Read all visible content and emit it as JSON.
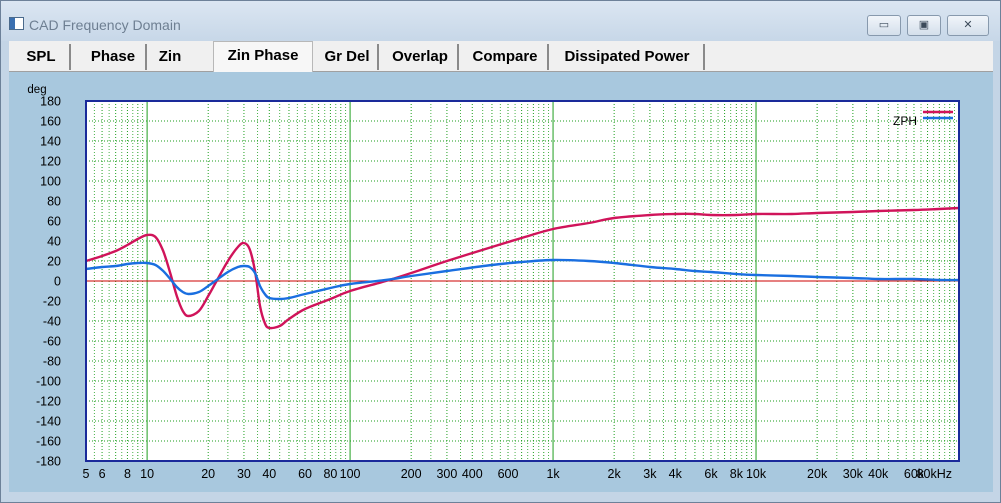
{
  "window": {
    "title": "CAD Frequency Domain",
    "controls": {
      "minimize": "▭",
      "maximize": "▣",
      "close": "✕"
    }
  },
  "tabs": [
    {
      "label": "SPL",
      "active": false
    },
    {
      "label": "Phase",
      "active": false
    },
    {
      "label": "Zin",
      "active": false
    },
    {
      "label": "Zin Phase",
      "active": true
    },
    {
      "label": "Gr Del",
      "active": false
    },
    {
      "label": "Overlap",
      "active": false
    },
    {
      "label": "Compare",
      "active": false
    },
    {
      "label": "Dissipated Power",
      "active": false
    }
  ],
  "colors": {
    "plot_bg": "#ffffff",
    "grid": "#1e9e1e",
    "zero_line": "#cc0000",
    "series_magenta": "#d0145a",
    "series_blue": "#1a6fe0",
    "frame": "#1a2a9a"
  },
  "chart_data": {
    "type": "line",
    "xscale": "log",
    "xlim": [
      5,
      100000
    ],
    "ylim": [
      -180,
      180
    ],
    "ylabel": "deg",
    "grid": true,
    "legend_placement": "top-right",
    "y_ticks": [
      {
        "v": 180,
        "label": "180"
      },
      {
        "v": 160,
        "label": "160"
      },
      {
        "v": 140,
        "label": "140"
      },
      {
        "v": 120,
        "label": "120"
      },
      {
        "v": 100,
        "label": "100"
      },
      {
        "v": 80,
        "label": "80"
      },
      {
        "v": 60,
        "label": "60"
      },
      {
        "v": 40,
        "label": "40"
      },
      {
        "v": 20,
        "label": "20"
      },
      {
        "v": 0,
        "label": "0"
      },
      {
        "v": -20,
        "label": "-20"
      },
      {
        "v": -40,
        "label": "-40"
      },
      {
        "v": -60,
        "label": "-60"
      },
      {
        "v": -80,
        "label": "-80"
      },
      {
        "v": -100,
        "label": "-100"
      },
      {
        "v": -120,
        "label": "-120"
      },
      {
        "v": -140,
        "label": "-140"
      },
      {
        "v": -160,
        "label": "-160"
      },
      {
        "v": -180,
        "label": "-180"
      }
    ],
    "x_ticks": [
      {
        "v": 5,
        "label": "5"
      },
      {
        "v": 6,
        "label": "6"
      },
      {
        "v": 8,
        "label": "8"
      },
      {
        "v": 10,
        "label": "10"
      },
      {
        "v": 20,
        "label": "20"
      },
      {
        "v": 30,
        "label": "30"
      },
      {
        "v": 40,
        "label": "40"
      },
      {
        "v": 60,
        "label": "60"
      },
      {
        "v": 80,
        "label": "80"
      },
      {
        "v": 100,
        "label": "100"
      },
      {
        "v": 200,
        "label": "200"
      },
      {
        "v": 300,
        "label": "300"
      },
      {
        "v": 400,
        "label": "400"
      },
      {
        "v": 600,
        "label": "600"
      },
      {
        "v": 1000,
        "label": "1k"
      },
      {
        "v": 2000,
        "label": "2k"
      },
      {
        "v": 3000,
        "label": "3k"
      },
      {
        "v": 4000,
        "label": "4k"
      },
      {
        "v": 6000,
        "label": "6k"
      },
      {
        "v": 8000,
        "label": "8k"
      },
      {
        "v": 10000,
        "label": "10k"
      },
      {
        "v": 20000,
        "label": "20k"
      },
      {
        "v": 30000,
        "label": "30k"
      },
      {
        "v": 40000,
        "label": "40k"
      },
      {
        "v": 60000,
        "label": "60k"
      },
      {
        "v": 80000,
        "label": "80kHz"
      }
    ],
    "legend": [
      {
        "label": "ZPH"
      }
    ],
    "series": [
      {
        "color": "#d0145a",
        "x": [
          5,
          6,
          7,
          8,
          9,
          10,
          11,
          12,
          13,
          14,
          15,
          16,
          18,
          20,
          22,
          25,
          28,
          30,
          32,
          34,
          36,
          38,
          40,
          45,
          50,
          60,
          80,
          100,
          150,
          200,
          300,
          500,
          700,
          1000,
          1500,
          2000,
          3000,
          4000,
          5000,
          6000,
          8000,
          10000,
          15000,
          20000,
          30000,
          40000,
          60000,
          80000,
          100000
        ],
        "y": [
          20,
          25,
          30,
          36,
          42,
          46,
          44,
          30,
          8,
          -15,
          -30,
          -35,
          -30,
          -15,
          0,
          20,
          34,
          38,
          32,
          10,
          -25,
          -42,
          -47,
          -45,
          -38,
          -28,
          -18,
          -10,
          0,
          8,
          20,
          34,
          43,
          52,
          58,
          63,
          66,
          67,
          67,
          66,
          66,
          67,
          67,
          68,
          69,
          70,
          71,
          72,
          73
        ]
      },
      {
        "color": "#1a6fe0",
        "x": [
          5,
          6,
          7,
          8,
          9,
          10,
          11,
          12,
          13,
          14,
          15,
          16,
          18,
          20,
          22,
          25,
          28,
          30,
          32,
          34,
          36,
          38,
          40,
          45,
          50,
          60,
          80,
          100,
          150,
          200,
          300,
          500,
          700,
          1000,
          1500,
          2000,
          3000,
          4000,
          5000,
          6000,
          8000,
          10000,
          15000,
          20000,
          30000,
          40000,
          60000,
          80000,
          100000
        ],
        "y": [
          12,
          14,
          15,
          17,
          18,
          18,
          16,
          10,
          2,
          -6,
          -11,
          -13,
          -11,
          -5,
          1,
          9,
          14,
          15,
          14,
          8,
          -5,
          -13,
          -17,
          -18,
          -17,
          -13,
          -7,
          -3,
          1,
          5,
          10,
          16,
          19,
          21,
          20,
          18,
          14,
          12,
          10,
          9,
          7,
          6,
          5,
          4,
          3,
          2,
          2,
          1,
          1
        ]
      }
    ]
  }
}
